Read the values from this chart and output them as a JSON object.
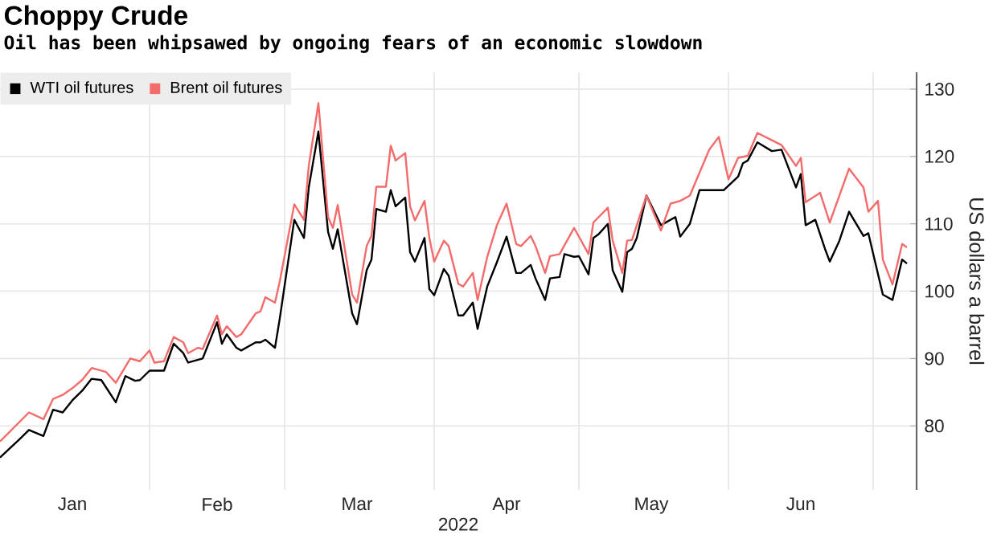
{
  "chart_data": {
    "type": "line",
    "title": "Choppy Crude",
    "subtitle": "Oil has been whipsawed by ongoing fears of an economic slowdown",
    "xlabel": "2022",
    "ylabel": "US dollars a barrel",
    "series": [
      {
        "name": "WTI oil futures",
        "color": "#000000",
        "x": [
          "2022-01-01",
          "2022-01-05",
          "2022-01-07",
          "2022-01-10",
          "2022-01-12",
          "2022-01-14",
          "2022-01-16",
          "2022-01-18",
          "2022-01-20",
          "2022-01-22",
          "2022-01-25",
          "2022-01-27",
          "2022-01-29",
          "2022-01-30",
          "2022-02-01",
          "2022-02-04",
          "2022-02-06",
          "2022-02-08",
          "2022-02-09",
          "2022-02-12",
          "2022-02-15",
          "2022-02-16",
          "2022-02-17",
          "2022-02-19",
          "2022-02-20",
          "2022-02-23",
          "2022-02-24",
          "2022-02-25",
          "2022-02-27",
          "2022-02-28",
          "2022-03-03",
          "2022-03-05",
          "2022-03-06",
          "2022-03-08",
          "2022-03-10",
          "2022-03-11",
          "2022-03-12",
          "2022-03-15",
          "2022-03-16",
          "2022-03-18",
          "2022-03-19",
          "2022-03-20",
          "2022-03-22",
          "2022-03-23",
          "2022-03-24",
          "2022-03-26",
          "2022-03-27",
          "2022-03-28",
          "2022-03-30",
          "2022-03-31",
          "2022-04-01",
          "2022-04-03",
          "2022-04-04",
          "2022-04-06",
          "2022-04-07",
          "2022-04-09",
          "2022-04-10",
          "2022-04-12",
          "2022-04-14",
          "2022-04-16",
          "2022-04-18",
          "2022-04-19",
          "2022-04-21",
          "2022-04-22",
          "2022-04-24",
          "2022-04-25",
          "2022-04-27",
          "2022-04-28",
          "2022-04-30",
          "2022-05-01",
          "2022-05-03",
          "2022-05-04",
          "2022-05-05",
          "2022-05-07",
          "2022-05-08",
          "2022-05-10",
          "2022-05-11",
          "2022-05-12",
          "2022-05-13",
          "2022-05-15",
          "2022-05-18",
          "2022-05-21",
          "2022-05-22",
          "2022-05-24",
          "2022-05-26",
          "2022-05-29",
          "2022-05-31",
          "2022-06-03",
          "2022-06-04",
          "2022-06-05",
          "2022-06-07",
          "2022-06-10",
          "2022-06-12",
          "2022-06-15",
          "2022-06-16",
          "2022-06-17",
          "2022-06-19",
          "2022-06-21",
          "2022-06-22",
          "2022-06-24",
          "2022-06-26",
          "2022-06-29",
          "2022-06-30",
          "2022-07-03",
          "2022-07-05",
          "2022-07-07",
          "2022-07-08"
        ],
        "values": [
          75.3,
          78.0,
          79.4,
          78.5,
          82.4,
          82.0,
          83.8,
          85.2,
          87.0,
          86.8,
          83.5,
          87.4,
          86.7,
          86.8,
          88.2,
          88.2,
          92.2,
          90.8,
          89.4,
          90.0,
          95.4,
          92.2,
          93.6,
          91.6,
          91.2,
          92.4,
          92.4,
          92.8,
          91.6,
          96.0,
          110.6,
          107.9,
          115.4,
          123.7,
          108.8,
          106.3,
          109.2,
          96.7,
          95.1,
          103.1,
          104.7,
          112.2,
          111.8,
          115.0,
          112.6,
          113.9,
          105.8,
          104.4,
          107.9,
          100.3,
          99.4,
          103.3,
          102.3,
          96.4,
          96.4,
          98.3,
          94.4,
          100.7,
          104.3,
          108.1,
          102.7,
          102.7,
          103.9,
          101.9,
          98.7,
          101.9,
          102.1,
          105.5,
          105.1,
          105.2,
          102.5,
          107.9,
          108.4,
          110.0,
          103.1,
          99.9,
          105.8,
          106.3,
          107.9,
          114.2,
          109.8,
          111.0,
          108.1,
          110.0,
          115.0,
          115.0,
          115.0,
          117.0,
          119.0,
          119.4,
          122.1,
          120.8,
          121.0,
          115.4,
          117.4,
          109.8,
          110.6,
          106.3,
          104.4,
          107.5,
          111.8,
          108.2,
          108.6,
          99.5,
          98.7,
          104.7,
          104.1
        ]
      },
      {
        "name": "Brent oil futures",
        "color": "#f46b6b",
        "x": [
          "2022-01-01",
          "2022-01-07",
          "2022-01-10",
          "2022-01-12",
          "2022-01-14",
          "2022-01-16",
          "2022-01-18",
          "2022-01-20",
          "2022-01-23",
          "2022-01-25",
          "2022-01-28",
          "2022-01-30",
          "2022-02-01",
          "2022-02-02",
          "2022-02-04",
          "2022-02-06",
          "2022-02-08",
          "2022-02-09",
          "2022-02-11",
          "2022-02-12",
          "2022-02-15",
          "2022-02-16",
          "2022-02-17",
          "2022-02-19",
          "2022-02-20",
          "2022-02-23",
          "2022-02-24",
          "2022-02-25",
          "2022-02-27",
          "2022-02-28",
          "2022-03-03",
          "2022-03-05",
          "2022-03-06",
          "2022-03-08",
          "2022-03-10",
          "2022-03-11",
          "2022-03-12",
          "2022-03-15",
          "2022-03-16",
          "2022-03-18",
          "2022-03-19",
          "2022-03-20",
          "2022-03-22",
          "2022-03-23",
          "2022-03-24",
          "2022-03-26",
          "2022-03-27",
          "2022-03-28",
          "2022-03-30",
          "2022-03-31",
          "2022-04-01",
          "2022-04-03",
          "2022-04-04",
          "2022-04-06",
          "2022-04-07",
          "2022-04-09",
          "2022-04-10",
          "2022-04-12",
          "2022-04-14",
          "2022-04-16",
          "2022-04-18",
          "2022-04-19",
          "2022-04-21",
          "2022-04-22",
          "2022-04-24",
          "2022-04-25",
          "2022-04-27",
          "2022-04-30",
          "2022-05-03",
          "2022-05-04",
          "2022-05-07",
          "2022-05-08",
          "2022-05-10",
          "2022-05-11",
          "2022-05-12",
          "2022-05-15",
          "2022-05-18",
          "2022-05-20",
          "2022-05-22",
          "2022-05-24",
          "2022-05-28",
          "2022-05-30",
          "2022-06-01",
          "2022-06-03",
          "2022-06-05",
          "2022-06-07",
          "2022-06-10",
          "2022-06-12",
          "2022-06-15",
          "2022-06-16",
          "2022-06-17",
          "2022-06-20",
          "2022-06-22",
          "2022-06-26",
          "2022-06-29",
          "2022-06-30",
          "2022-07-02",
          "2022-07-03",
          "2022-07-05",
          "2022-07-07",
          "2022-07-08"
        ],
        "values": [
          77.7,
          82.0,
          81.0,
          84.0,
          84.6,
          85.6,
          86.8,
          88.6,
          88.0,
          86.4,
          90.0,
          89.6,
          91.2,
          89.4,
          89.6,
          93.2,
          92.4,
          90.8,
          91.6,
          91.4,
          96.4,
          93.6,
          94.8,
          93.2,
          93.6,
          96.7,
          97.0,
          99.1,
          98.3,
          101.5,
          112.9,
          110.6,
          118.6,
          127.9,
          111.0,
          109.4,
          112.8,
          99.5,
          98.3,
          106.7,
          108.2,
          115.5,
          115.5,
          121.6,
          119.4,
          120.5,
          112.6,
          110.5,
          113.4,
          107.9,
          104.4,
          107.5,
          106.7,
          101.1,
          100.7,
          102.7,
          98.7,
          105.1,
          109.8,
          113.0,
          107.0,
          106.7,
          108.2,
          106.7,
          102.7,
          105.2,
          105.5,
          109.4,
          105.5,
          110.2,
          112.4,
          107.5,
          102.7,
          107.5,
          107.6,
          114.2,
          109.0,
          113.0,
          113.4,
          114.2,
          121.0,
          122.9,
          116.6,
          119.8,
          120.1,
          123.5,
          122.4,
          121.7,
          118.6,
          119.8,
          113.2,
          114.6,
          110.2,
          118.2,
          115.4,
          111.8,
          113.4,
          104.7,
          101.0,
          107.0,
          106.5
        ]
      }
    ],
    "xlim": [
      "2022-01-01",
      "2022-07-10"
    ],
    "ylim": [
      70.5,
      132.5
    ],
    "xticks": [
      {
        "value": "2022-01-16",
        "label": "Jan"
      },
      {
        "value": "2022-02-01",
        "label": null
      },
      {
        "value": "2022-02-15",
        "label": "Feb"
      },
      {
        "value": "2022-03-01",
        "label": null
      },
      {
        "value": "2022-03-16",
        "label": "Mar"
      },
      {
        "value": "2022-04-01",
        "label": null
      },
      {
        "value": "2022-04-16",
        "label": "Apr"
      },
      {
        "value": "2022-05-01",
        "label": null
      },
      {
        "value": "2022-05-16",
        "label": "May"
      },
      {
        "value": "2022-06-01",
        "label": null
      },
      {
        "value": "2022-06-16",
        "label": "Jun"
      },
      {
        "value": "2022-07-01",
        "label": null
      }
    ],
    "yticks": [
      80,
      90,
      100,
      110,
      120,
      130
    ],
    "grid": true,
    "legend": "top left"
  }
}
